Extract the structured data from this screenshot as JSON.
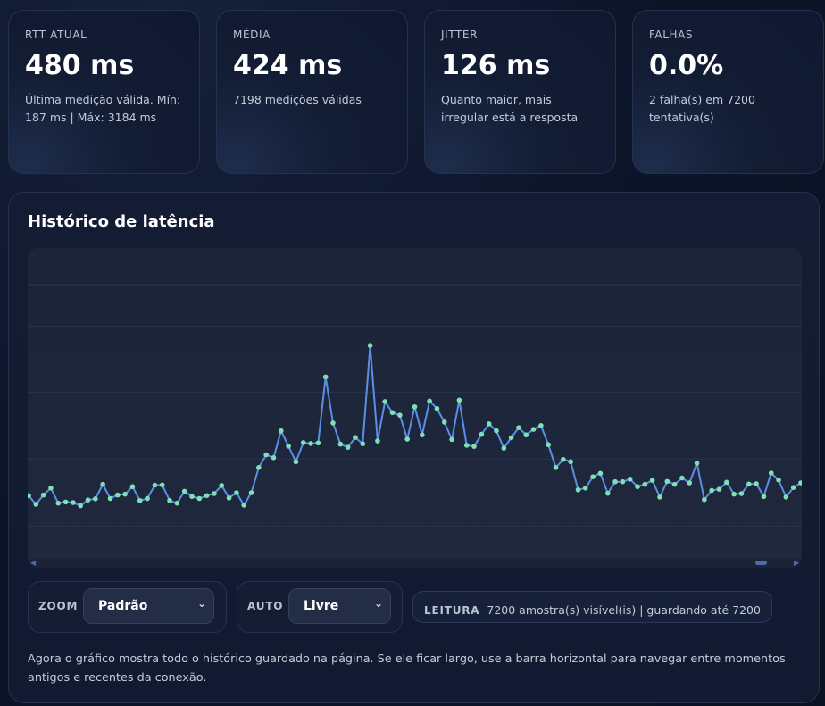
{
  "stats": [
    {
      "label": "RTT ATUAL",
      "value": "480 ms",
      "sub": "Última medição válida. Mín: 187 ms | Máx: 3184 ms"
    },
    {
      "label": "MÉDIA",
      "value": "424 ms",
      "sub": "7198 medições válidas"
    },
    {
      "label": "JITTER",
      "value": "126 ms",
      "sub": "Quanto maior, mais irregular está a resposta"
    },
    {
      "label": "FALHAS",
      "value": "0.0%",
      "sub": "2 falha(s) em 7200 tentativa(s)"
    }
  ],
  "panel": {
    "title": "Histórico de latência",
    "zoom": {
      "label": "ZOOM",
      "value": "Padrão"
    },
    "auto": {
      "label": "AUTO",
      "value": "Livre"
    },
    "reading": {
      "label": "LEITURA",
      "text": "7200 amostra(s) visível(is) | guardando até 7200"
    },
    "note": "Agora o gráfico mostra todo o histórico guardado na página. Se ele ficar largo, use a barra horizontal para navegar entre momentos antigos e recentes da conexão."
  },
  "colors": {
    "line": "#5b8fe6",
    "point": "#7ee0b3",
    "grid": "#2b3550"
  },
  "chart_data": {
    "type": "line",
    "title": "",
    "xlabel": "",
    "ylabel": "",
    "grid": true,
    "ylim": [
      0,
      1
    ],
    "series": [
      {
        "values": [
          0.206,
          0.176,
          0.208,
          0.232,
          0.18,
          0.184,
          0.182,
          0.171,
          0.191,
          0.195,
          0.245,
          0.196,
          0.208,
          0.211,
          0.237,
          0.189,
          0.196,
          0.242,
          0.243,
          0.189,
          0.18,
          0.221,
          0.203,
          0.196,
          0.206,
          0.213,
          0.241,
          0.198,
          0.216,
          0.173,
          0.216,
          0.303,
          0.347,
          0.337,
          0.43,
          0.377,
          0.323,
          0.389,
          0.386,
          0.388,
          0.616,
          0.457,
          0.384,
          0.373,
          0.407,
          0.385,
          0.725,
          0.395,
          0.531,
          0.493,
          0.484,
          0.401,
          0.513,
          0.416,
          0.533,
          0.507,
          0.46,
          0.4,
          0.536,
          0.38,
          0.376,
          0.418,
          0.454,
          0.43,
          0.37,
          0.406,
          0.441,
          0.416,
          0.435,
          0.448,
          0.382,
          0.303,
          0.331,
          0.323,
          0.226,
          0.232,
          0.271,
          0.283,
          0.214,
          0.254,
          0.254,
          0.263,
          0.237,
          0.245,
          0.259,
          0.201,
          0.255,
          0.245,
          0.267,
          0.25,
          0.318,
          0.192,
          0.224,
          0.228,
          0.252,
          0.211,
          0.213,
          0.246,
          0.247,
          0.203,
          0.284,
          0.26,
          0.201,
          0.234,
          0.25
        ]
      }
    ]
  }
}
